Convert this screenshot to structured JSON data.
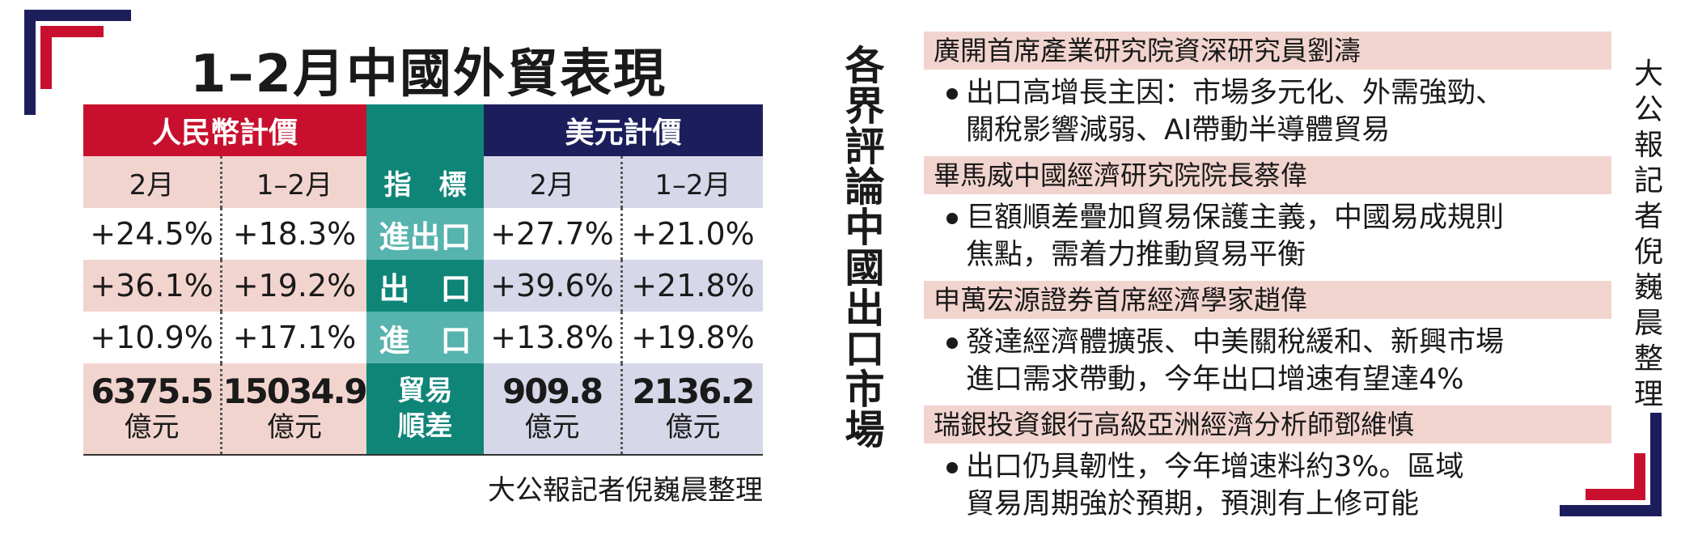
{
  "colors": {
    "red": "#c8102e",
    "navy": "#1c1e5c",
    "teal": "#0f8578",
    "light_teal": "#56b3ad",
    "pink": "#f2d4cf",
    "lavender": "#d6d7e8"
  },
  "left": {
    "title": "1–2月中國外貿表現",
    "header": {
      "rmb": "人民幣計價",
      "usd": "美元計價"
    },
    "subheader": {
      "feb": "2月",
      "jan_feb": "1–2月",
      "indicator": "指　標",
      "feb_usd": "2月",
      "jan_feb_usd": "1–2月"
    },
    "rows": [
      {
        "indicator": "進出口",
        "rmb_feb": "+24.5%",
        "rmb_janfeb": "+18.3%",
        "usd_feb": "+27.7%",
        "usd_janfeb": "+21.0%"
      },
      {
        "indicator": "出　口",
        "rmb_feb": "+36.1%",
        "rmb_janfeb": "+19.2%",
        "usd_feb": "+39.6%",
        "usd_janfeb": "+21.8%"
      },
      {
        "indicator": "進　口",
        "rmb_feb": "+10.9%",
        "rmb_janfeb": "+17.1%",
        "usd_feb": "+13.8%",
        "usd_janfeb": "+19.8%"
      }
    ],
    "totals": {
      "indicator_line1": "貿易",
      "indicator_line2": "順差",
      "unit": "億元",
      "rmb_feb": "6375.5",
      "rmb_janfeb": "15034.9",
      "usd_feb": "909.8",
      "usd_janfeb": "2136.2"
    },
    "credit": "大公報記者倪巍晨整理"
  },
  "vertical_title": "各界評論中國出口市場",
  "vertical_credit": "大公報記者倪巍晨整理",
  "comments": [
    {
      "speaker": "廣開首席產業研究院資深研究員劉濤",
      "line1": "出口高增長主因：市場多元化、外需強勁、",
      "line2": "關稅影響減弱、AI帶動半導體貿易"
    },
    {
      "speaker": "畢馬威中國經濟研究院院長蔡偉",
      "line1": "巨額順差疊加貿易保護主義，中國易成規則",
      "line2": "焦點，需着力推動貿易平衡"
    },
    {
      "speaker": "申萬宏源證券首席經濟學家趙偉",
      "line1": "發達經濟體擴張、中美關稅緩和、新興市場",
      "line2": "進口需求帶動，今年出口增速有望達4%"
    },
    {
      "speaker": "瑞銀投資銀行高級亞洲經濟分析師鄧維慎",
      "line1": "出口仍具韌性，今年增速料約3%。區域",
      "line2": "貿易周期強於預期，預測有上修可能"
    }
  ]
}
